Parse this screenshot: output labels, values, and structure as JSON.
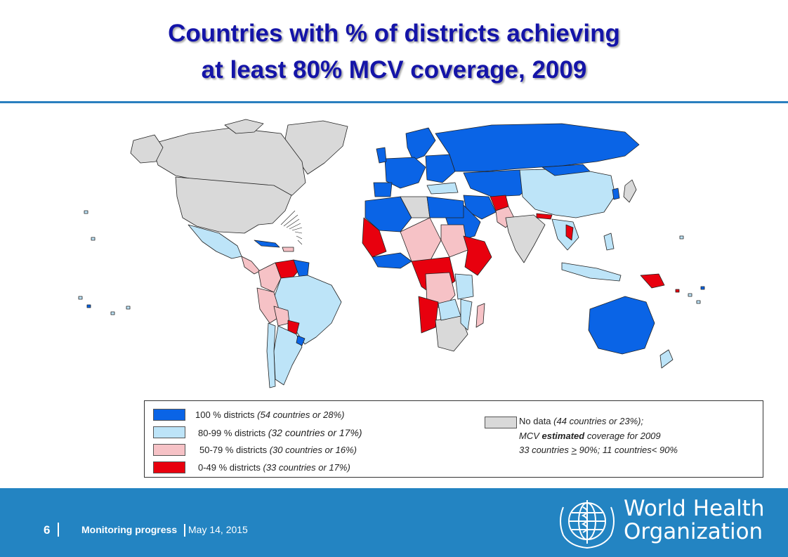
{
  "title": {
    "line1": "Countries with % of districts achieving",
    "line2": "at least 80% MCV coverage, 2009"
  },
  "colors": {
    "title": "#1414a8",
    "cat_100": "#0a64e6",
    "cat_80_99": "#bde4f8",
    "cat_50_79": "#f6c2c6",
    "cat_0_49": "#e8000e",
    "no_data": "#d9d9d9",
    "footer": "#2384c2"
  },
  "legend": {
    "items": [
      {
        "label": "100 % districts",
        "detail": "(54 countries or 28%)",
        "color": "#0a64e6"
      },
      {
        "label": "80-99 % districts",
        "detail": "(32 countries or 17%)",
        "color": "#bde4f8"
      },
      {
        "label": "50-79 % districts",
        "detail": "(30 countries or 16%)",
        "color": "#f6c2c6"
      },
      {
        "label": "0-49 % districts",
        "detail": "(33 countries or 17%)",
        "color": "#e8000e"
      }
    ],
    "no_data": {
      "label": "No data",
      "detail": "(44 countries or 23%);",
      "line2_pre": "MCV",
      "line2_bold": "estimated",
      "line2_post": "coverage  for 2009",
      "line3_pre": "33 countries",
      "line3_geq": ">",
      "line3_post": "90%; 11 countries< 90%",
      "color": "#d9d9d9"
    }
  },
  "footer": {
    "page_number": "6",
    "section": "Monitoring progress",
    "date": "May 14, 2015",
    "org_line1": "World Health",
    "org_line2": "Organization"
  }
}
